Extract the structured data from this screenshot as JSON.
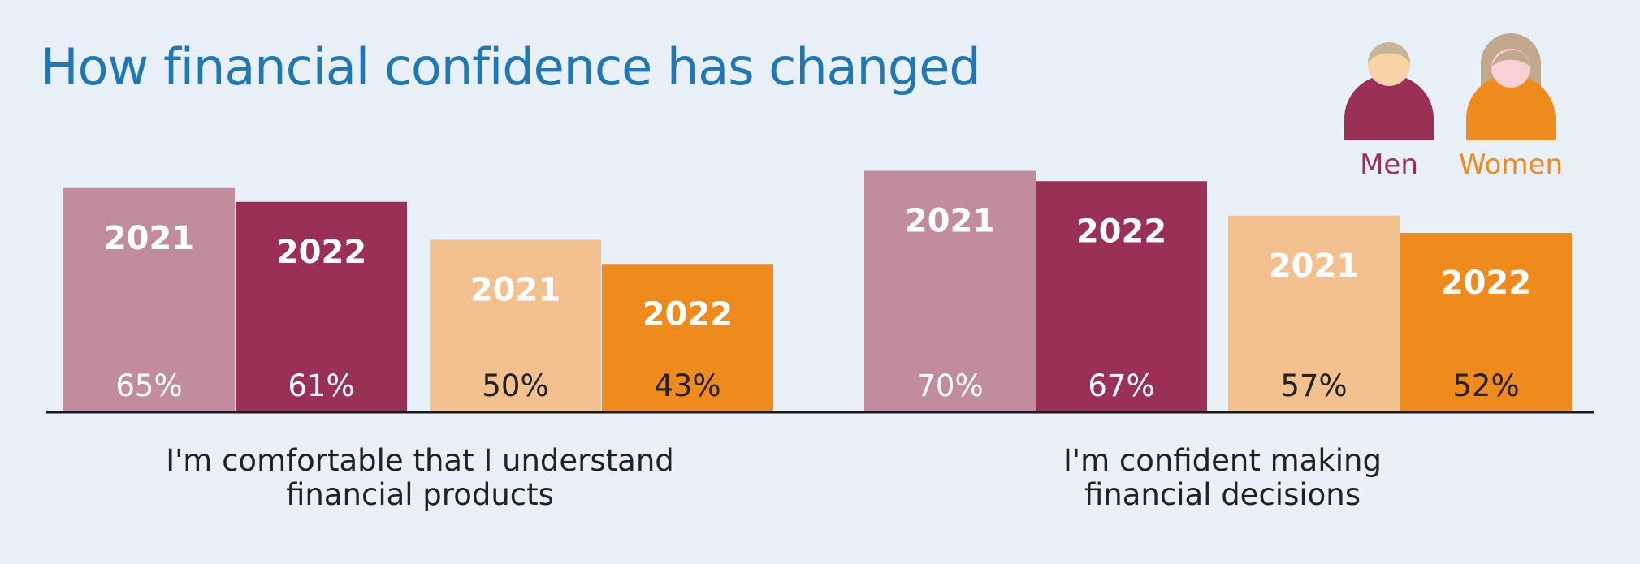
{
  "title": "How financial confidence has changed",
  "legend": [
    {
      "label": "Men",
      "color": "#9b3057",
      "icon": "man-icon"
    },
    {
      "label": "Women",
      "color": "#ef8a1c",
      "icon": "woman-icon"
    }
  ],
  "chart_data": {
    "type": "bar",
    "title": "How financial confidence has changed",
    "unit": "%",
    "grid": false,
    "legend_placement": "top-right",
    "ylim": [
      0,
      100
    ],
    "groups": [
      {
        "category": "I'm comfortable that I understand financial products",
        "label_lines": [
          "I'm comfortable that I understand",
          "financial products"
        ],
        "bars": [
          {
            "series": "Men",
            "year": "2021",
            "value": 65,
            "label": "65%",
            "color": "#c08c9e",
            "text_color": "#ffffff"
          },
          {
            "series": "Men",
            "year": "2022",
            "value": 61,
            "label": "61%",
            "color": "#9b3057",
            "text_color": "#ffffff"
          },
          {
            "series": "Women",
            "year": "2021",
            "value": 50,
            "label": "50%",
            "color": "#f3c190",
            "text_color": "#222222"
          },
          {
            "series": "Women",
            "year": "2022",
            "value": 43,
            "label": "43%",
            "color": "#ef8a1c",
            "text_color": "#222222"
          }
        ]
      },
      {
        "category": "I'm confident making financial decisions",
        "label_lines": [
          "I'm confident making",
          "financial decisions"
        ],
        "bars": [
          {
            "series": "Men",
            "year": "2021",
            "value": 70,
            "label": "70%",
            "color": "#c08c9e",
            "text_color": "#ffffff"
          },
          {
            "series": "Men",
            "year": "2022",
            "value": 67,
            "label": "67%",
            "color": "#9b3057",
            "text_color": "#ffffff"
          },
          {
            "series": "Women",
            "year": "2021",
            "value": 57,
            "label": "57%",
            "color": "#f3c190",
            "text_color": "#222222"
          },
          {
            "series": "Women",
            "year": "2022",
            "value": 52,
            "label": "52%",
            "color": "#ef8a1c",
            "text_color": "#222222"
          }
        ]
      }
    ]
  }
}
